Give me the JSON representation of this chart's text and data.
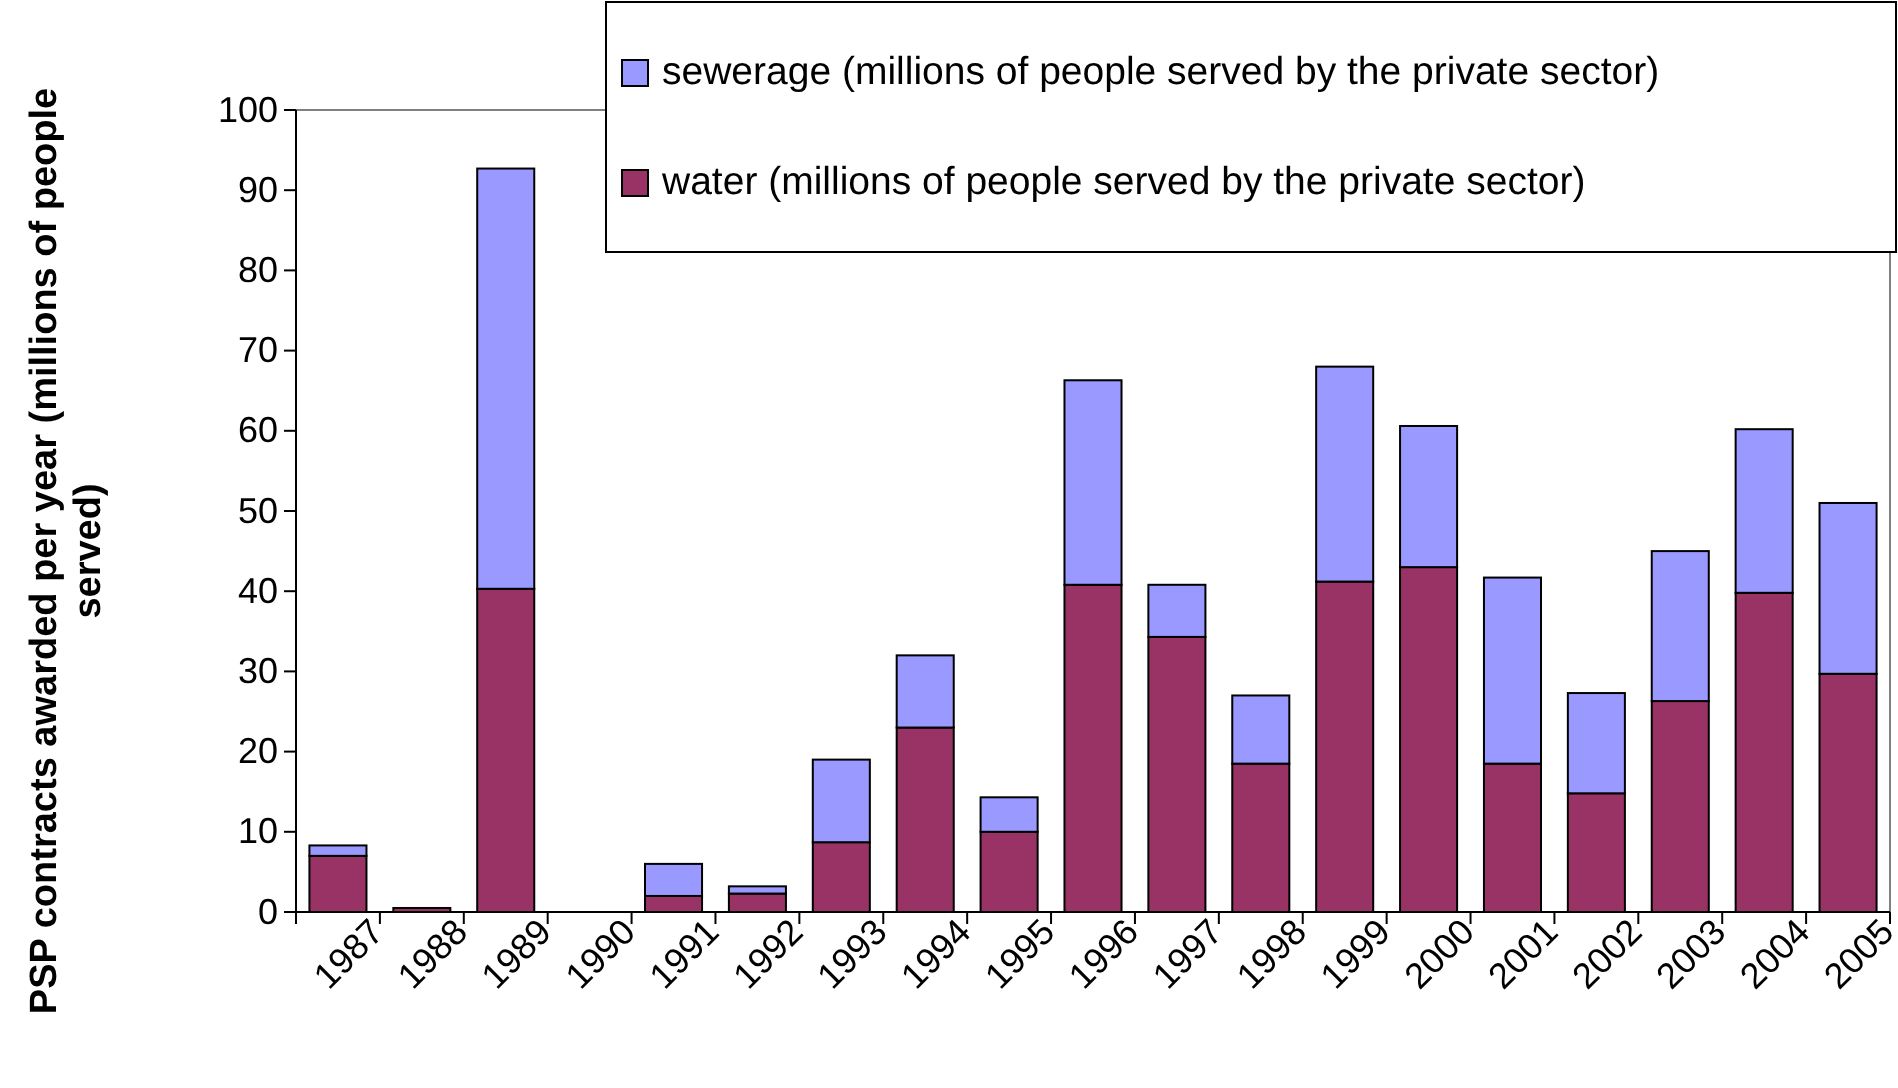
{
  "chart_data": {
    "type": "bar",
    "stacked": true,
    "ylabel": "PSP contracts awarded per year (millions of people served)",
    "categories": [
      "1987",
      "1988",
      "1989",
      "1990",
      "1991",
      "1992",
      "1993",
      "1994",
      "1995",
      "1996",
      "1997",
      "1998",
      "1999",
      "2000",
      "2001",
      "2002",
      "2003",
      "2004",
      "2005"
    ],
    "series": [
      {
        "name": "water (millions of people served by the private sector)",
        "color": "#993366",
        "values": [
          7,
          0.5,
          40.3,
          0,
          2,
          2.3,
          8.7,
          23,
          10,
          40.8,
          34.3,
          18.5,
          41.2,
          43,
          18.5,
          14.8,
          26.3,
          39.8,
          29.7
        ]
      },
      {
        "name": "sewerage (millions of people served by the private sector)",
        "color": "#9999ff",
        "values": [
          1.3,
          0,
          52.4,
          0,
          4,
          0.9,
          10.3,
          9,
          4.3,
          25.5,
          6.5,
          8.5,
          26.8,
          17.6,
          23.2,
          12.5,
          18.7,
          20.4,
          21.3
        ]
      }
    ],
    "ylim": [
      0,
      100
    ],
    "yticks": [
      0,
      10,
      20,
      30,
      40,
      50,
      60,
      70,
      80,
      90,
      100
    ],
    "legend": "top right"
  }
}
